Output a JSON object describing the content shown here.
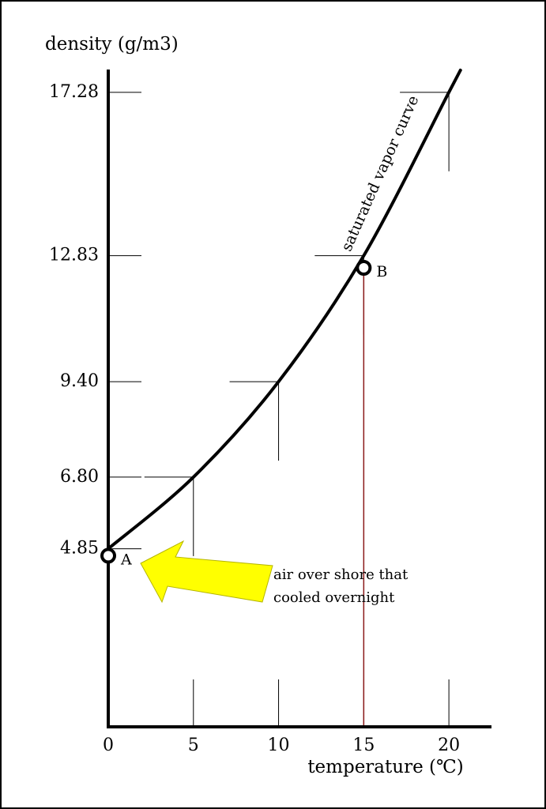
{
  "chart_data": {
    "type": "line",
    "y_label": "density (g/m3)",
    "x_label": "temperature (℃)",
    "x": [
      0,
      5,
      10,
      15,
      20,
      20.7
    ],
    "series": [
      {
        "name": "saturated vapor curve",
        "color": "#000000",
        "values": [
          4.85,
          6.8,
          9.4,
          12.83,
          17.28,
          17.9
        ]
      }
    ],
    "xlim": [
      0,
      22.5
    ],
    "ylim": [
      0,
      17.9
    ],
    "xticks": [
      0,
      5,
      10,
      15,
      20
    ],
    "yticks": [
      4.85,
      {
        "value": 6.8,
        "label": "6.80"
      },
      {
        "value": 9.4,
        "label": "9.40"
      },
      12.83,
      17.28
    ],
    "points": [
      {
        "label": "A",
        "x": 0,
        "y": 4.66
      },
      {
        "label": "B",
        "x": 15,
        "y": 12.5
      }
    ],
    "drop_line_color": "#8b1a1a",
    "annotation": [
      "air over shore that",
      "cooled overnight"
    ],
    "arrow_color": "#ffff00"
  }
}
